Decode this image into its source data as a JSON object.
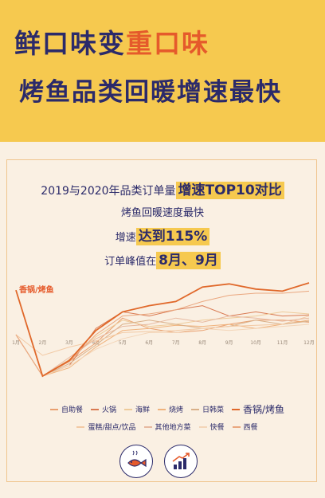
{
  "header": {
    "line1_a": "鲜口味变",
    "line1_b": "重口味",
    "line2": "烤鱼品类回暖增速最快"
  },
  "card": {
    "title_a": "2019与2020年品类订单量",
    "title_b": "增速TOP10对比",
    "line2": "烤鱼回暖速度最快",
    "line3_a": "增速",
    "line3_b": "达到115%",
    "line4_a": "订单峰值在",
    "line4_b": "8月、9月"
  },
  "icons": {
    "left": "fish-icon",
    "right": "growth-chart-icon"
  },
  "colors": {
    "bg_yellow": "#f6c94f",
    "navy": "#2b2a6a",
    "accent": "#e55a2b",
    "card_bg": "#faf0e3"
  },
  "chart_data": {
    "type": "line",
    "title": "2019与2020年品类订单量增速TOP10对比",
    "categories": [
      "1月",
      "2月",
      "3月",
      "4月",
      "5月",
      "6月",
      "7月",
      "8月",
      "9月",
      "10月",
      "11月",
      "12月"
    ],
    "ylim": [
      -2,
      10
    ],
    "annotation": "香锅/烤鱼",
    "series": [
      {
        "name": "自助餐",
        "color": "#e9a070",
        "values": [
          4.0,
          0.0,
          1.4,
          3.2,
          5.6,
          4.6,
          4.2,
          4.4,
          5.0,
          5.4,
          5.4,
          5.2
        ]
      },
      {
        "name": "火锅",
        "color": "#d97a52",
        "values": [
          4.0,
          0.0,
          1.0,
          4.6,
          6.2,
          5.8,
          6.4,
          6.8,
          5.8,
          6.2,
          5.8,
          5.9
        ]
      },
      {
        "name": "海鲜",
        "color": "#eecb9a",
        "values": [
          4.0,
          0.0,
          1.6,
          3.8,
          5.4,
          4.8,
          5.0,
          5.4,
          5.6,
          5.8,
          6.2,
          6.0
        ]
      },
      {
        "name": "烧烤",
        "color": "#f0b37d",
        "values": [
          4.0,
          0.0,
          0.8,
          2.8,
          4.4,
          4.6,
          4.9,
          4.8,
          5.0,
          4.6,
          5.0,
          5.4
        ]
      },
      {
        "name": "日韩菜",
        "color": "#d9b089",
        "values": [
          4.0,
          0.0,
          1.2,
          3.0,
          5.0,
          5.4,
          5.0,
          4.6,
          4.8,
          5.4,
          5.0,
          5.3
        ]
      },
      {
        "name": "香锅/烤鱼",
        "color": "#e0682a",
        "values": [
          8.3,
          0.0,
          1.5,
          4.4,
          6.2,
          6.8,
          7.2,
          8.6,
          8.9,
          8.4,
          8.2,
          9.0
        ]
      },
      {
        "name": "蛋糕/甜点/饮品",
        "color": "#f2c9a4",
        "values": [
          4.0,
          2.0,
          2.8,
          3.4,
          4.2,
          4.3,
          4.4,
          4.6,
          4.8,
          4.9,
          5.0,
          5.8
        ]
      },
      {
        "name": "其他地方菜",
        "color": "#e7b9a0",
        "values": [
          4.0,
          0.0,
          1.8,
          3.6,
          4.8,
          5.0,
          5.6,
          5.2,
          5.8,
          5.6,
          5.3,
          5.6
        ]
      },
      {
        "name": "快餐",
        "color": "#f3d5b8",
        "values": [
          4.0,
          0.0,
          1.0,
          2.6,
          3.6,
          4.2,
          4.2,
          4.6,
          4.4,
          4.6,
          4.8,
          5.0
        ]
      },
      {
        "name": "西餐",
        "color": "#eaa77f",
        "values": [
          4.0,
          0.0,
          1.4,
          4.0,
          5.8,
          6.0,
          6.4,
          7.2,
          7.8,
          8.0,
          8.0,
          8.2
        ]
      }
    ]
  }
}
